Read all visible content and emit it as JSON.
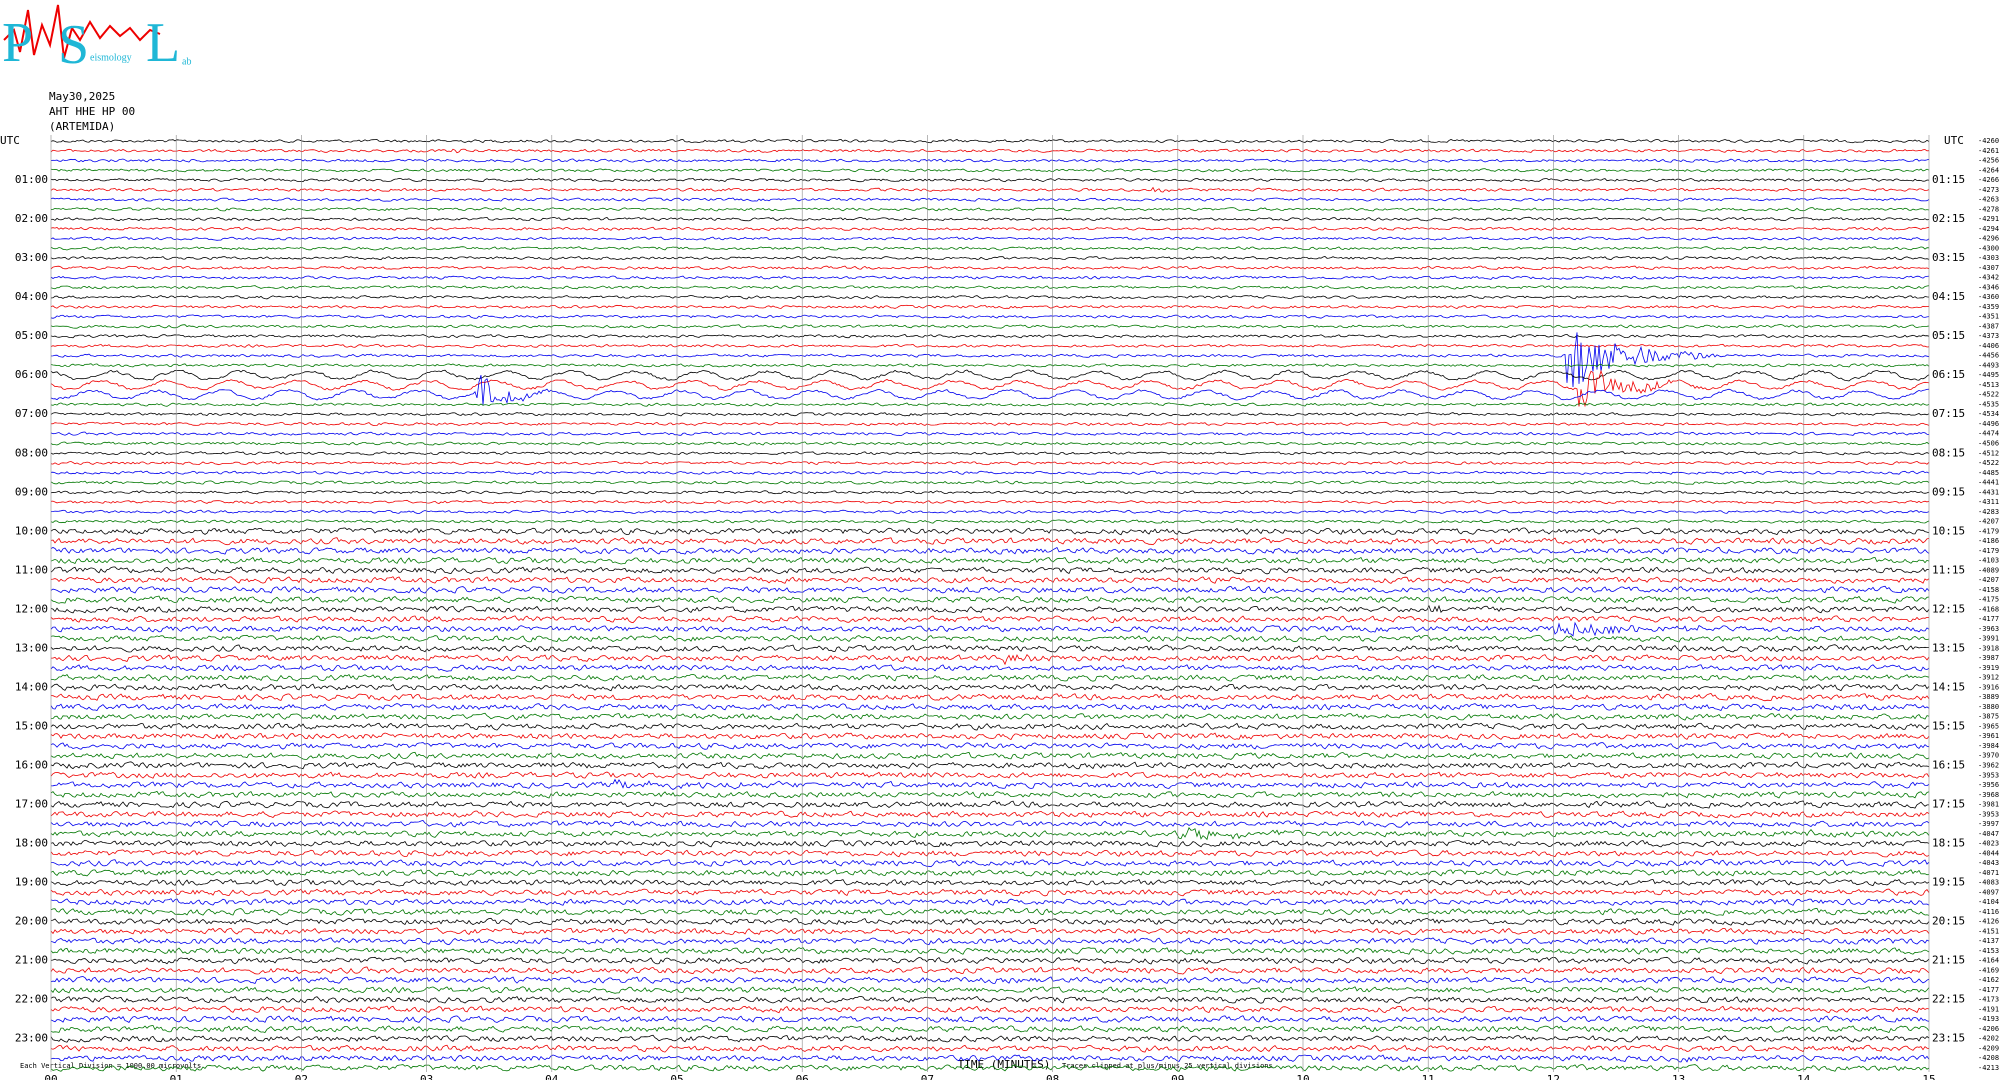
{
  "logo": {
    "letters": [
      "P",
      "S",
      "L"
    ],
    "word1": "eismology",
    "word2": "ab"
  },
  "header": {
    "date": "May30,2025",
    "station": "AHT HHE HP 00",
    "site": "(ARTEMIDA)"
  },
  "axis": {
    "left_title": "UTC",
    "right_title": "UTC",
    "x_title": "TIME (MINUTES)",
    "x_ticks": [
      "00",
      "01",
      "02",
      "03",
      "04",
      "05",
      "06",
      "07",
      "08",
      "09",
      "10",
      "11",
      "12",
      "13",
      "14",
      "15"
    ],
    "left_hours": [
      "01:00",
      "02:00",
      "03:00",
      "04:00",
      "05:00",
      "06:00",
      "07:00",
      "08:00",
      "09:00",
      "10:00",
      "11:00",
      "12:00",
      "13:00",
      "14:00",
      "15:00",
      "16:00",
      "17:00",
      "18:00",
      "19:00",
      "20:00",
      "21:00",
      "22:00",
      "23:00"
    ],
    "right_hours": [
      "01:15",
      "02:15",
      "03:15",
      "04:15",
      "05:15",
      "06:15",
      "07:15",
      "08:15",
      "09:15",
      "10:15",
      "11:15",
      "12:15",
      "13:15",
      "14:15",
      "15:15",
      "16:15",
      "17:15",
      "18:15",
      "19:15",
      "20:15",
      "21:15",
      "22:15",
      "23:15"
    ]
  },
  "trace_offsets": [
    -4260,
    -4261,
    -4256,
    -4264,
    -4266,
    -4273,
    -4263,
    -4278,
    -4291,
    -4294,
    -4296,
    -4300,
    -4303,
    -4307,
    -4342,
    -4346,
    -4360,
    -4359,
    -4351,
    -4387,
    -4373,
    -4406,
    -4456,
    -4493,
    -4495,
    -4513,
    -4522,
    -4535,
    -4534,
    -4496,
    -4474,
    -4506,
    -4512,
    -4522,
    -4485,
    -4441,
    -4431,
    -4311,
    -4283,
    -4207,
    -4179,
    -4186,
    -4179,
    -4103,
    -4089,
    -4207,
    -4158,
    -4175,
    -4168,
    -4177,
    -3963,
    -3991,
    -3918,
    -3987,
    -3919,
    -3912,
    -3916,
    -3889,
    -3880,
    -3875,
    -3965,
    -3961,
    -3984,
    -3970,
    -3962,
    -3953,
    -3956,
    -3968,
    -3981,
    -3953,
    -3997,
    -4047,
    -4023,
    -4044,
    -4043,
    -4071,
    -4083,
    -4097,
    -4104,
    -4116,
    -4126,
    -4151,
    -4137,
    -4153,
    -4164,
    -4169,
    -4162,
    -4177,
    -4173,
    -4191,
    -4193,
    -4206,
    -4202,
    -4209,
    -4208,
    -4213
  ],
  "footer": {
    "scale": "Each Vertical Division = 1000.00 microvolts",
    "clip": "Traces clipped at plus/minus 25 vertical divisions"
  }
}
